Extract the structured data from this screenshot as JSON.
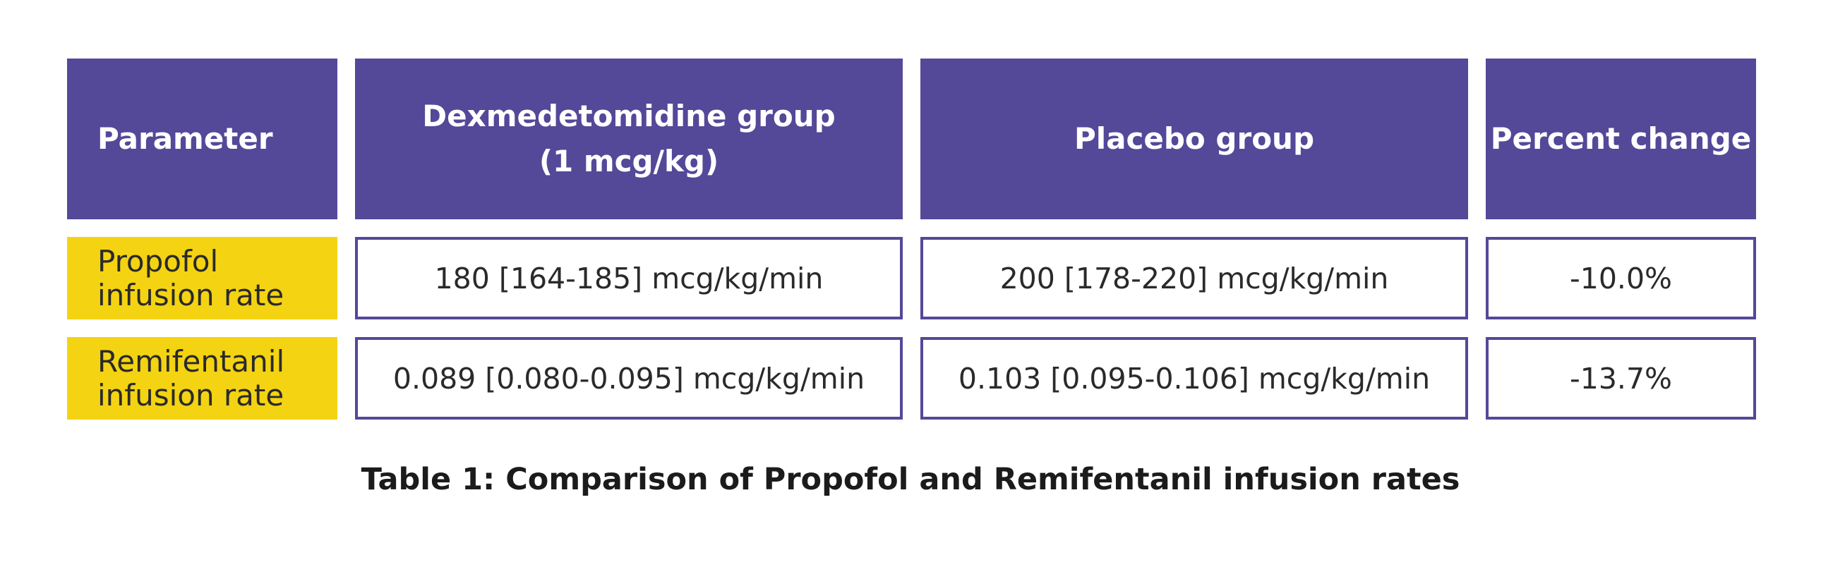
{
  "table": {
    "headers": [
      "Parameter",
      "Dexmedetomidine group\n(1 mcg/kg)",
      "Placebo group",
      "Percent change"
    ],
    "rows": [
      {
        "parameter": "Propofol\ninfusion rate",
        "dexmedetomidine": "180 [164-185] mcg/kg/min",
        "placebo": "200 [178-220] mcg/kg/min",
        "percent_change": "-10.0%"
      },
      {
        "parameter": "Remifentanil\ninfusion rate",
        "dexmedetomidine": "0.089 [0.080-0.095] mcg/kg/min",
        "placebo": "0.103 [0.095-0.106] mcg/kg/min",
        "percent_change": "-13.7%"
      }
    ]
  },
  "caption": "Table 1: Comparison of Propofol and Remifentanil infusion rates",
  "colors": {
    "header_bg": "#544899",
    "header_text": "#ffffff",
    "row_label_bg": "#f4d312",
    "cell_border": "#544899"
  }
}
